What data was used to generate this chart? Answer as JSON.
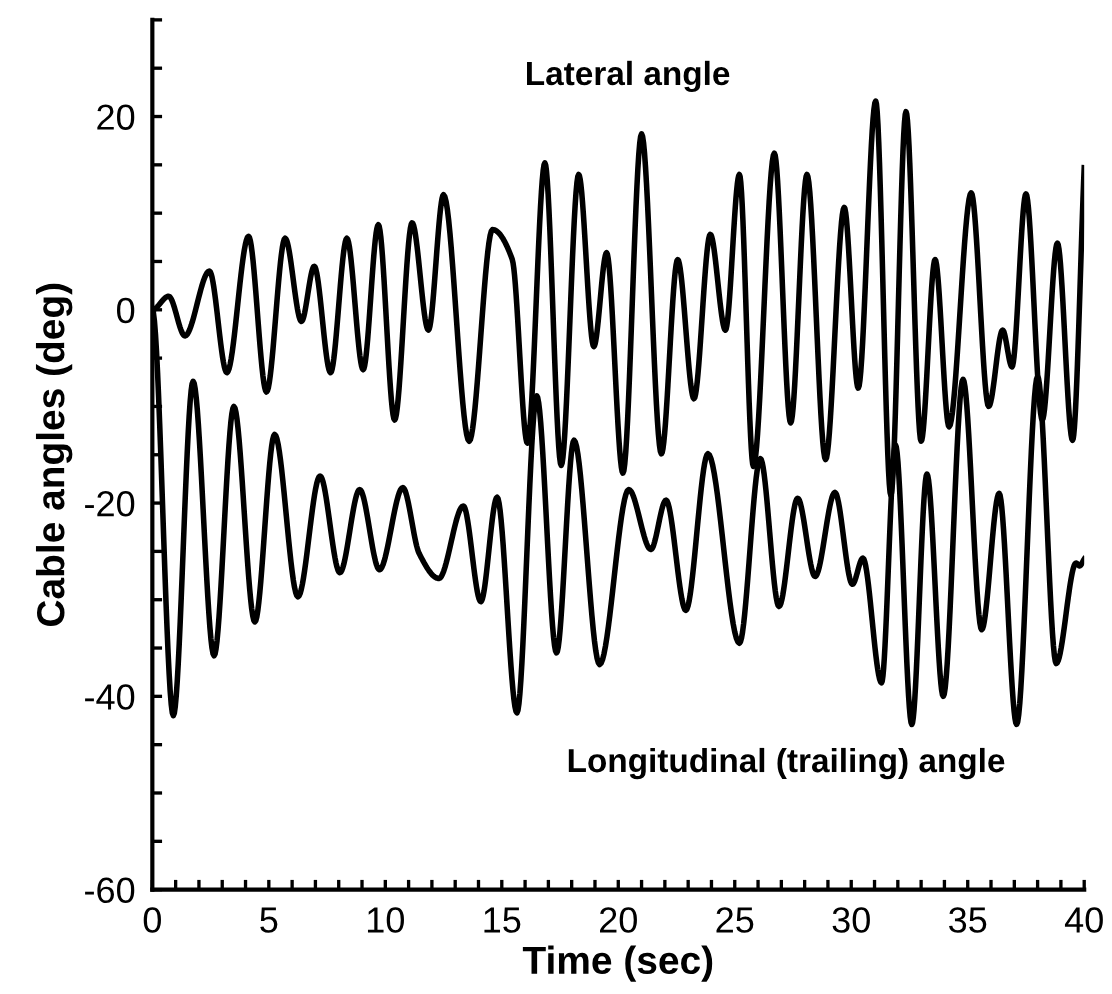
{
  "chart_data": {
    "type": "line",
    "xlabel": "Time (sec)",
    "ylabel": "Cable angles (deg)",
    "annotations": [
      "Lateral angle",
      "Longitudinal (trailing) angle"
    ],
    "xlim": [
      0,
      40
    ],
    "ylim": [
      -60,
      30
    ],
    "xticks": [
      0,
      {
        "value": 1,
        "label": null
      },
      {
        "value": 2,
        "label": null
      },
      {
        "value": 3,
        "label": null
      },
      {
        "value": 4,
        "label": null
      },
      5,
      {
        "value": 6,
        "label": null
      },
      {
        "value": 7,
        "label": null
      },
      {
        "value": 8,
        "label": null
      },
      {
        "value": 9,
        "label": null
      },
      10,
      {
        "value": 11,
        "label": null
      },
      {
        "value": 12,
        "label": null
      },
      {
        "value": 13,
        "label": null
      },
      {
        "value": 14,
        "label": null
      },
      15,
      {
        "value": 16,
        "label": null
      },
      {
        "value": 17,
        "label": null
      },
      {
        "value": 18,
        "label": null
      },
      {
        "value": 19,
        "label": null
      },
      20,
      {
        "value": 21,
        "label": null
      },
      {
        "value": 22,
        "label": null
      },
      {
        "value": 23,
        "label": null
      },
      {
        "value": 24,
        "label": null
      },
      25,
      {
        "value": 26,
        "label": null
      },
      {
        "value": 27,
        "label": null
      },
      {
        "value": 28,
        "label": null
      },
      {
        "value": 29,
        "label": null
      },
      30,
      {
        "value": 31,
        "label": null
      },
      {
        "value": 32,
        "label": null
      },
      {
        "value": 33,
        "label": null
      },
      {
        "value": 34,
        "label": null
      },
      35,
      {
        "value": 36,
        "label": null
      },
      {
        "value": 37,
        "label": null
      },
      {
        "value": 38,
        "label": null
      },
      {
        "value": 39,
        "label": null
      },
      40
    ],
    "yticks": [
      -60,
      {
        "value": -55,
        "label": null
      },
      {
        "value": -50,
        "label": null
      },
      {
        "value": -45,
        "label": null
      },
      -40,
      {
        "value": -35,
        "label": null
      },
      {
        "value": -30,
        "label": null
      },
      {
        "value": -25,
        "label": null
      },
      -20,
      {
        "value": -15,
        "label": null
      },
      {
        "value": -10,
        "label": null
      },
      {
        "value": -5,
        "label": null
      },
      0,
      {
        "value": 5,
        "label": null
      },
      {
        "value": 10,
        "label": null
      },
      {
        "value": 15,
        "label": null
      },
      20,
      {
        "value": 25,
        "label": null
      },
      {
        "value": 30,
        "label": null
      }
    ],
    "grid": false,
    "legend": false,
    "marker": "none",
    "line_style": "solid",
    "series": [
      {
        "color": "#000000",
        "x": [
          0,
          0.7,
          1.4,
          2.45,
          3.2,
          4.13,
          4.9,
          5.7,
          6.4,
          6.95,
          7.65,
          8.35,
          9.05,
          9.7,
          10.4,
          11.15,
          11.85,
          12.5,
          13.6,
          14.6,
          15.45,
          16.1,
          16.85,
          17.55,
          18.3,
          18.95,
          19.5,
          20.2,
          21.0,
          21.85,
          22.55,
          23.25,
          23.95,
          24.6,
          25.2,
          25.8,
          26.7,
          27.4,
          28.1,
          28.9,
          29.7,
          30.3,
          31.05,
          31.7,
          32.35,
          33.0,
          33.6,
          34.2,
          35.15,
          35.9,
          36.5,
          36.9,
          37.5,
          38.2,
          38.85,
          39.5,
          40
        ],
        "values": [
          0,
          1.4,
          -2.7,
          4,
          -6.5,
          7.6,
          -8.5,
          7.4,
          -1.2,
          4.5,
          -6.5,
          7.4,
          -6.2,
          8.8,
          -11.4,
          9,
          -2.1,
          11.9,
          -13.6,
          8.3,
          5.2,
          -13.8,
          15.2,
          -16.1,
          14,
          -3.8,
          5.9,
          -16.9,
          18.2,
          -14.9,
          5.2,
          -9.2,
          7.8,
          -2.1,
          14,
          -16.2,
          16.2,
          -11.7,
          14,
          -15.5,
          10.6,
          -8.1,
          21.6,
          -19.2,
          20.5,
          -13.6,
          5.2,
          -12.1,
          12.1,
          -10,
          -2.1,
          -5.9,
          12,
          -11.4,
          6.9,
          -13.5,
          14.7
        ]
      },
      {
        "color": "#000000",
        "x": [
          0,
          0.9,
          1.75,
          2.65,
          3.5,
          4.4,
          5.25,
          6.25,
          7.2,
          8.05,
          8.9,
          9.75,
          10.75,
          11.45,
          12.3,
          13.35,
          14.1,
          14.8,
          15.65,
          16.5,
          17.35,
          18.1,
          19.2,
          20.45,
          21.4,
          22.05,
          22.9,
          23.85,
          25.2,
          26.1,
          26.9,
          27.7,
          28.45,
          29.3,
          30.05,
          30.5,
          31.3,
          31.9,
          32.6,
          33.25,
          33.95,
          34.8,
          35.6,
          36.35,
          37.1,
          38.0,
          38.8,
          39.65,
          39.8,
          40
        ],
        "values": [
          0,
          -42,
          -7.4,
          -35.8,
          -10,
          -32.3,
          -12.9,
          -29.7,
          -17.2,
          -27.2,
          -18.6,
          -26.9,
          -18.4,
          -25.2,
          -27.8,
          -20.3,
          -30.2,
          -19.4,
          -41.7,
          -8.9,
          -35.5,
          -13.5,
          -36.7,
          -18.6,
          -24.8,
          -19.7,
          -31.1,
          -14.9,
          -34.5,
          -15.4,
          -30.7,
          -19.5,
          -27.6,
          -18.9,
          -28.4,
          -25.7,
          -38.6,
          -14,
          -42.9,
          -17,
          -40,
          -7.2,
          -33.1,
          -19,
          -42.9,
          -6.9,
          -36.6,
          -26.2,
          -26.5,
          -25.8
        ]
      }
    ]
  }
}
